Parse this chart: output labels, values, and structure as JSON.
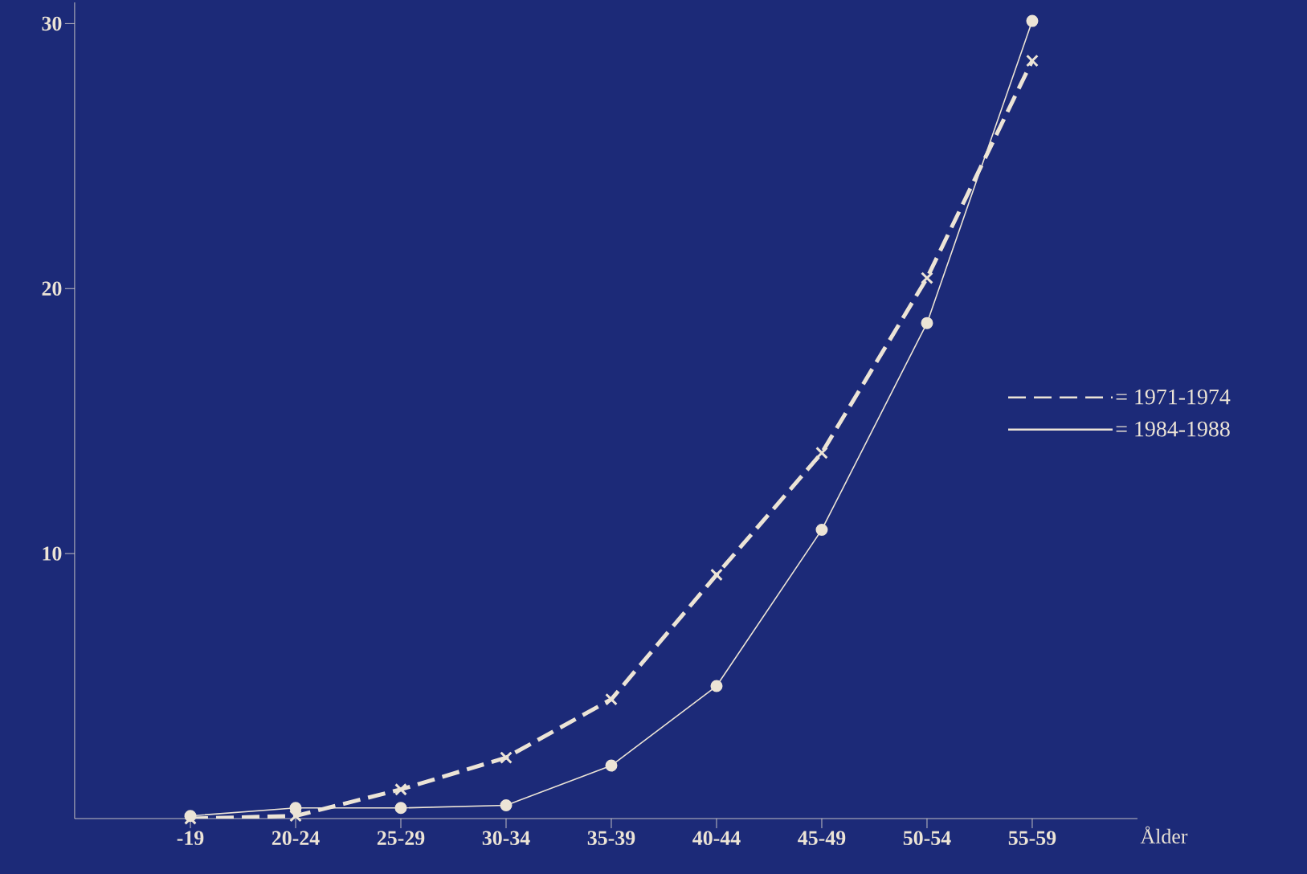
{
  "chart_data": {
    "type": "line",
    "xlabel": "Ålder",
    "categories": [
      "-19",
      "20-24",
      "25-29",
      "30-34",
      "35-39",
      "40-44",
      "45-49",
      "50-54",
      "55-59"
    ],
    "series": [
      {
        "name": "= 1971-1974",
        "color": "#ece4d6",
        "line_style": "dashed",
        "marker": "cross",
        "values": [
          0.0,
          0.1,
          1.1,
          2.3,
          4.5,
          9.2,
          13.8,
          20.4,
          28.6
        ]
      },
      {
        "name": "= 1984-1988",
        "color": "#ece4d6",
        "line_style": "solid",
        "marker": "circle",
        "values": [
          0.1,
          0.4,
          0.4,
          0.5,
          2.0,
          5.0,
          10.9,
          18.7,
          30.1
        ]
      }
    ],
    "ylim": [
      0,
      30.8
    ],
    "yticks": [
      10,
      20,
      30
    ],
    "grid": false,
    "legend": "right"
  }
}
